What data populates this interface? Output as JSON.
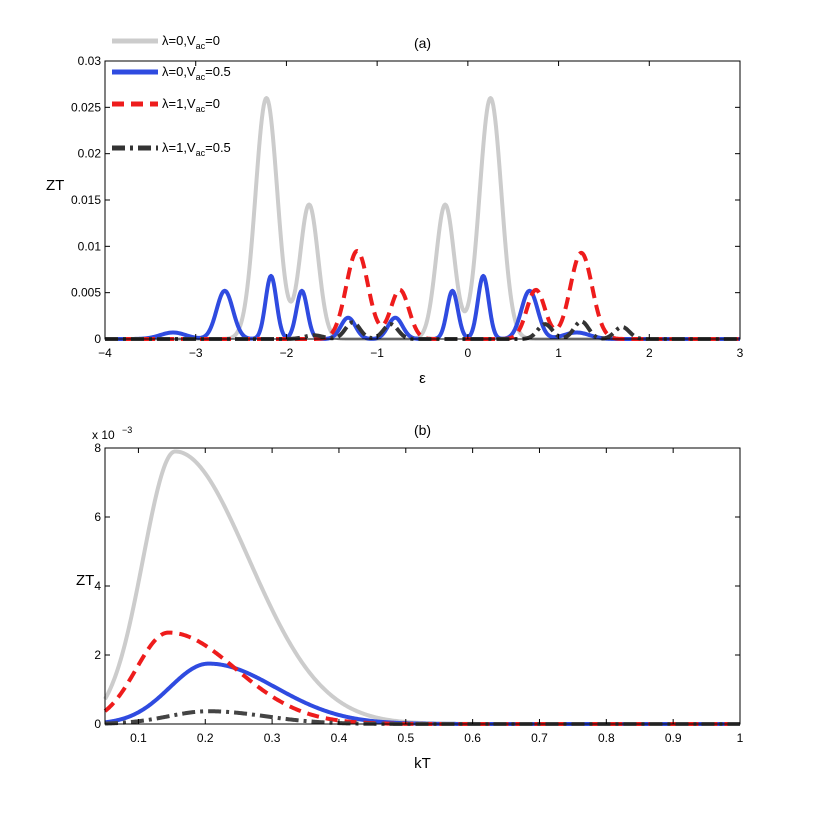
{
  "chart_data": [
    {
      "type": "line",
      "panel": "a",
      "title": "(a)",
      "xlabel": "ε",
      "ylabel": "ZT",
      "xlim": [
        -4,
        3
      ],
      "ylim": [
        0,
        0.03
      ],
      "xticks": [
        -4,
        -3,
        -2,
        -1,
        0,
        1,
        2,
        3
      ],
      "yticks": [
        0,
        0.005,
        0.01,
        0.015,
        0.02,
        0.025,
        0.03
      ],
      "xtick_labels": [
        "−4",
        "−3",
        "−2",
        "−1",
        "0",
        "1",
        "2",
        "3"
      ],
      "ytick_labels": [
        "0",
        "0.005",
        "0.01",
        "0.015",
        "0.02",
        "0.025",
        "0.03"
      ],
      "legend": {
        "location": "top-left",
        "entries": [
          {
            "prefix": "λ=0,V",
            "sub": "ac",
            "suffix": "=0"
          },
          {
            "prefix": "λ=0,V",
            "sub": "ac",
            "suffix": "=0.5"
          },
          {
            "prefix": "λ=1,V",
            "sub": "ac",
            "suffix": "=0"
          },
          {
            "prefix": "λ=1,V",
            "sub": "ac",
            "suffix": "=0.5"
          }
        ]
      },
      "series": [
        {
          "name": "λ=0,Vac=0",
          "color": "#cccccc",
          "style": "solid",
          "peaks": [
            [
              -2.22,
              0.026,
              0.12
            ],
            [
              -1.75,
              0.0145,
              0.1
            ],
            [
              -0.25,
              0.0145,
              0.1
            ],
            [
              0.25,
              0.026,
              0.12
            ]
          ]
        },
        {
          "name": "λ=0,Vac=0.5",
          "color": "#2f4be0",
          "style": "solid",
          "peaks": [
            [
              -3.25,
              0.0007,
              0.14
            ],
            [
              -2.68,
              0.0052,
              0.09
            ],
            [
              -2.17,
              0.0068,
              0.06
            ],
            [
              -1.83,
              0.0052,
              0.06
            ],
            [
              -1.32,
              0.0023,
              0.08
            ],
            [
              -0.8,
              0.0023,
              0.08
            ],
            [
              -0.17,
              0.0052,
              0.06
            ],
            [
              0.17,
              0.0068,
              0.06
            ],
            [
              0.68,
              0.0052,
              0.09
            ],
            [
              1.2,
              0.0007,
              0.14
            ]
          ]
        },
        {
          "name": "λ=1,Vac=0",
          "color": "#ee1c1c",
          "style": "dash",
          "peaks": [
            [
              -1.22,
              0.0095,
              0.12
            ],
            [
              -0.75,
              0.0053,
              0.1
            ],
            [
              0.75,
              0.0053,
              0.1
            ],
            [
              1.25,
              0.0093,
              0.12
            ]
          ]
        },
        {
          "name": "λ=1,Vac=0.5",
          "color": "#333333",
          "style": "dashdot",
          "peaks": [
            [
              -1.7,
              0.0004,
              0.1
            ],
            [
              -1.27,
              0.0018,
              0.08
            ],
            [
              -0.85,
              0.0016,
              0.08
            ],
            [
              0.85,
              0.0016,
              0.08
            ],
            [
              1.25,
              0.0019,
              0.08
            ],
            [
              1.7,
              0.0013,
              0.08
            ]
          ]
        }
      ]
    },
    {
      "type": "line",
      "panel": "b",
      "title": "(b)",
      "xlabel": "kT",
      "ylabel": "ZT",
      "scale_note": "x 10",
      "scale_exp": "−3",
      "xlim": [
        0.05,
        1
      ],
      "ylim": [
        0,
        8
      ],
      "xticks": [
        0.1,
        0.2,
        0.3,
        0.4,
        0.5,
        0.6,
        0.7,
        0.8,
        0.9,
        1
      ],
      "yticks": [
        0,
        2,
        4,
        6,
        8
      ],
      "xtick_labels": [
        "0.1",
        "0.2",
        "0.3",
        "0.4",
        "0.5",
        "0.6",
        "0.7",
        "0.8",
        "0.9",
        "1"
      ],
      "ytick_labels": [
        "0",
        "2",
        "4",
        "6",
        "8"
      ],
      "series": [
        {
          "name": "λ=0,Vac=0",
          "color": "#cccccc",
          "style": "solid",
          "peak_x": 0.155,
          "peak_y": 7.9,
          "rise": 0.048,
          "decay": 0.11
        },
        {
          "name": "λ=0,Vac=0.5",
          "color": "#2f4be0",
          "style": "solid",
          "peak_x": 0.205,
          "peak_y": 1.75,
          "rise": 0.058,
          "decay": 0.1
        },
        {
          "name": "λ=1,Vac=0",
          "color": "#ee1c1c",
          "style": "dash",
          "peak_x": 0.145,
          "peak_y": 2.65,
          "rise": 0.048,
          "decay": 0.1
        },
        {
          "name": "λ=1,Vac=0.5",
          "color": "#444444",
          "style": "dashdot",
          "peak_x": 0.205,
          "peak_y": 0.37,
          "rise": 0.06,
          "decay": 0.085
        }
      ]
    }
  ]
}
